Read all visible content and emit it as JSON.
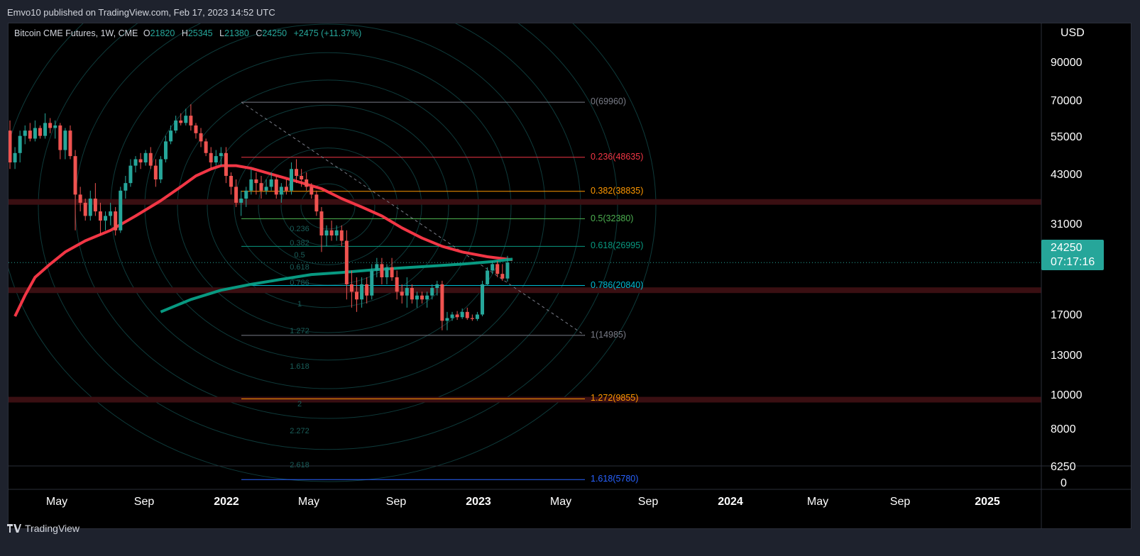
{
  "publisher": "Emvo10 published on TradingView.com, Feb 17, 2023 14:52 UTC",
  "brand": "TradingView",
  "legend": {
    "title": "Bitcoin CME Futures, 1W, CME",
    "open_label": "O",
    "open": "21820",
    "high_label": "H",
    "high": "25345",
    "low_label": "L",
    "low": "21380",
    "close_label": "C",
    "close": "24250",
    "change": "+2475 (+11.37%)"
  },
  "last_price": {
    "value": "24250",
    "countdown": "07:17:16"
  },
  "colors": {
    "up": "#26a69a",
    "down": "#ef5350",
    "ma_short": "#f23645",
    "ma_long": "#089981",
    "fan_rings": "#0e3a3a",
    "sr_zone": "#3a0f12"
  },
  "chart_data": {
    "type": "candlestick",
    "symbol": "Bitcoin CME Futures",
    "interval": "1W",
    "exchange": "CME",
    "currency": "USD",
    "y_scale": "log",
    "y_ticks": [
      "90000",
      "70000",
      "55000",
      "43000",
      "31000",
      "17000",
      "13000",
      "10000",
      "8000",
      "6250",
      "0"
    ],
    "x_ticks": [
      {
        "label": "May",
        "year": false
      },
      {
        "label": "Sep",
        "year": false
      },
      {
        "label": "2022",
        "year": true
      },
      {
        "label": "May",
        "year": false
      },
      {
        "label": "Sep",
        "year": false
      },
      {
        "label": "2023",
        "year": true
      },
      {
        "label": "May",
        "year": false
      },
      {
        "label": "Sep",
        "year": false
      },
      {
        "label": "2024",
        "year": true
      },
      {
        "label": "May",
        "year": false
      },
      {
        "label": "Sep",
        "year": false
      },
      {
        "label": "2025",
        "year": true
      }
    ],
    "candles_ohlc": [
      [
        58000,
        62000,
        45000,
        47000
      ],
      [
        47000,
        52000,
        45000,
        50000
      ],
      [
        50000,
        58000,
        47000,
        56000
      ],
      [
        56000,
        60000,
        53000,
        58000
      ],
      [
        58000,
        61000,
        54000,
        55000
      ],
      [
        55000,
        62000,
        54000,
        59000
      ],
      [
        59000,
        60000,
        55000,
        56000
      ],
      [
        56000,
        65000,
        55000,
        61000
      ],
      [
        61000,
        63000,
        57000,
        59000
      ],
      [
        59000,
        62000,
        55000,
        60000
      ],
      [
        60000,
        61000,
        48000,
        51000
      ],
      [
        51000,
        59000,
        48000,
        58000
      ],
      [
        58000,
        60000,
        48000,
        49000
      ],
      [
        49000,
        51000,
        30000,
        38000
      ],
      [
        38000,
        40000,
        34000,
        36000
      ],
      [
        36000,
        37000,
        32000,
        33000
      ],
      [
        33000,
        39000,
        32000,
        37000
      ],
      [
        37000,
        41000,
        33000,
        34000
      ],
      [
        34000,
        36000,
        29000,
        32000
      ],
      [
        32000,
        34000,
        30000,
        33000
      ],
      [
        33000,
        36000,
        31000,
        34000
      ],
      [
        34000,
        35000,
        29000,
        30000
      ],
      [
        30000,
        40000,
        29500,
        39000
      ],
      [
        39000,
        43000,
        37000,
        41000
      ],
      [
        41000,
        48000,
        40000,
        46000
      ],
      [
        46000,
        49000,
        44000,
        48000
      ],
      [
        48000,
        50000,
        45000,
        47000
      ],
      [
        47000,
        51000,
        46000,
        50000
      ],
      [
        50000,
        52000,
        45000,
        46000
      ],
      [
        46000,
        48000,
        40000,
        42000
      ],
      [
        42000,
        49000,
        41000,
        48000
      ],
      [
        48000,
        56000,
        47000,
        54000
      ],
      [
        54000,
        60000,
        53000,
        58000
      ],
      [
        58000,
        64000,
        57000,
        62000
      ],
      [
        62000,
        65000,
        60000,
        61000
      ],
      [
        61000,
        67000,
        60000,
        64000
      ],
      [
        64000,
        69000,
        58000,
        60000
      ],
      [
        60000,
        61000,
        55000,
        57000
      ],
      [
        57000,
        59000,
        52000,
        54000
      ],
      [
        54000,
        55000,
        49000,
        50000
      ],
      [
        50000,
        52000,
        45000,
        47000
      ],
      [
        47000,
        51000,
        46000,
        49000
      ],
      [
        49000,
        52000,
        46000,
        50000
      ],
      [
        50000,
        52000,
        41000,
        43000
      ],
      [
        43000,
        44000,
        38000,
        40000
      ],
      [
        40000,
        42000,
        35000,
        36000
      ],
      [
        36000,
        39000,
        33000,
        37000
      ],
      [
        37000,
        40000,
        35000,
        39000
      ],
      [
        39000,
        45000,
        38000,
        42000
      ],
      [
        42000,
        44000,
        38000,
        41000
      ],
      [
        41000,
        43000,
        37000,
        39000
      ],
      [
        39000,
        42000,
        38000,
        40000
      ],
      [
        40000,
        44000,
        39000,
        42000
      ],
      [
        42000,
        43000,
        37000,
        38000
      ],
      [
        38000,
        41000,
        36000,
        40000
      ],
      [
        40000,
        42000,
        38000,
        39000
      ],
      [
        39000,
        47000,
        38000,
        45000
      ],
      [
        45000,
        48000,
        41000,
        43000
      ],
      [
        43000,
        45000,
        40000,
        42000
      ],
      [
        42000,
        44000,
        39000,
        40000
      ],
      [
        40000,
        41000,
        37000,
        38000
      ],
      [
        38000,
        39000,
        33000,
        34000
      ],
      [
        34000,
        35000,
        26000,
        29000
      ],
      [
        29000,
        31000,
        27000,
        30000
      ],
      [
        30000,
        32000,
        28000,
        29000
      ],
      [
        29000,
        31000,
        28000,
        30000
      ],
      [
        30000,
        31000,
        27000,
        28000
      ],
      [
        28000,
        30000,
        19000,
        21000
      ],
      [
        21000,
        23000,
        18000,
        20000
      ],
      [
        20000,
        22000,
        17500,
        19000
      ],
      [
        19000,
        22000,
        18000,
        21000
      ],
      [
        21000,
        22000,
        18500,
        19500
      ],
      [
        19500,
        24000,
        19000,
        23000
      ],
      [
        23000,
        25000,
        22000,
        24000
      ],
      [
        24000,
        25000,
        21000,
        22000
      ],
      [
        22000,
        24000,
        21000,
        23500
      ],
      [
        23500,
        25000,
        21500,
        22000
      ],
      [
        22000,
        23000,
        19000,
        20000
      ],
      [
        20000,
        21000,
        18500,
        19500
      ],
      [
        19500,
        22000,
        18000,
        20500
      ],
      [
        20500,
        21000,
        18500,
        19000
      ],
      [
        19000,
        20000,
        18000,
        19500
      ],
      [
        19500,
        20000,
        18500,
        19000
      ],
      [
        19000,
        20000,
        18000,
        19500
      ],
      [
        19500,
        21000,
        19000,
        20500
      ],
      [
        20500,
        21500,
        19500,
        21000
      ],
      [
        21000,
        21500,
        15500,
        16500
      ],
      [
        16500,
        17500,
        15500,
        16800
      ],
      [
        16800,
        17500,
        16500,
        17200
      ],
      [
        17200,
        17600,
        16600,
        16900
      ],
      [
        16900,
        17900,
        16700,
        17500
      ],
      [
        17500,
        18000,
        16600,
        16800
      ],
      [
        16800,
        17200,
        16500,
        16700
      ],
      [
        16700,
        17500,
        16500,
        17200
      ],
      [
        17200,
        21500,
        17000,
        21000
      ],
      [
        21000,
        23500,
        20800,
        23000
      ],
      [
        23000,
        24500,
        22500,
        24000
      ],
      [
        24000,
        24500,
        22000,
        22500
      ],
      [
        22500,
        24000,
        21500,
        21820
      ],
      [
        21820,
        25345,
        21380,
        24250
      ]
    ],
    "ma_short_points": [
      [
        1,
        17000
      ],
      [
        3,
        19500
      ],
      [
        5,
        22000
      ],
      [
        8,
        24000
      ],
      [
        11,
        26000
      ],
      [
        15,
        28000
      ],
      [
        20,
        30000
      ],
      [
        25,
        33000
      ],
      [
        30,
        36500
      ],
      [
        34,
        40000
      ],
      [
        37,
        43000
      ],
      [
        40,
        45000
      ],
      [
        42,
        46000
      ],
      [
        45,
        46000
      ],
      [
        48,
        45200
      ],
      [
        52,
        43500
      ],
      [
        57,
        41500
      ],
      [
        62,
        39500
      ],
      [
        66,
        37000
      ],
      [
        70,
        35000
      ],
      [
        74,
        33000
      ],
      [
        78,
        30500
      ],
      [
        82,
        28500
      ],
      [
        86,
        27000
      ],
      [
        90,
        26000
      ],
      [
        95,
        25200
      ],
      [
        100,
        24700
      ]
    ],
    "ma_long_points": [
      [
        30,
        17500
      ],
      [
        36,
        19000
      ],
      [
        42,
        20200
      ],
      [
        48,
        21000
      ],
      [
        54,
        21700
      ],
      [
        60,
        22400
      ],
      [
        66,
        22700
      ],
      [
        72,
        23100
      ],
      [
        78,
        23400
      ],
      [
        84,
        23700
      ],
      [
        90,
        24000
      ],
      [
        96,
        24400
      ],
      [
        100,
        24800
      ]
    ],
    "fib_levels": [
      {
        "label": "0(69960)",
        "price": 69960,
        "color": "#787b86"
      },
      {
        "label": "0.236(48635)",
        "price": 48635,
        "color": "#f23645"
      },
      {
        "label": "0.382(38835)",
        "price": 38835,
        "color": "#ff9800"
      },
      {
        "label": "0.5(32380)",
        "price": 32380,
        "color": "#4caf50"
      },
      {
        "label": "0.618(26995)",
        "price": 26995,
        "color": "#089981"
      },
      {
        "label": "0.786(20840)",
        "price": 20840,
        "color": "#00bcd4"
      },
      {
        "label": "1(14985)",
        "price": 14985,
        "color": "#787b86"
      },
      {
        "label": "1.272(9855)",
        "price": 9855,
        "color": "#ff9800"
      },
      {
        "label": "1.618(5780)",
        "price": 5780,
        "color": "#2962ff"
      }
    ],
    "fan_labels": [
      "0.236",
      "0.382",
      "0.5",
      "0.618",
      "0.786",
      "1",
      "1.272",
      "1.618",
      "2",
      "2.272",
      "2.618"
    ],
    "sr_zones": [
      36200,
      20200,
      9800
    ],
    "last_close": 24250
  }
}
